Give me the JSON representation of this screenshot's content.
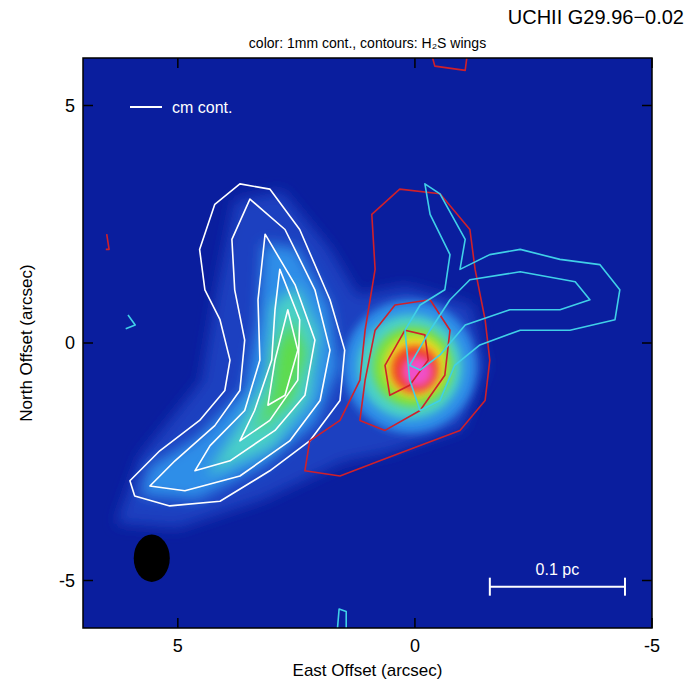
{
  "chart_data": {
    "type": "contour",
    "title": "UCHII G29.96−0.02",
    "subtitle": "color: 1mm cont., contours: H₂S wings",
    "x_label": "East Offset (arcsec)",
    "y_label": "North Offset (arcsec)",
    "xlim": [
      7,
      -5
    ],
    "ylim": [
      -6,
      6
    ],
    "xticks": [
      5,
      0,
      -5
    ],
    "yticks": [
      -5,
      0,
      5
    ],
    "legend": "upper left",
    "background": "#0a1e9e",
    "color_regions": [
      {
        "color": "#1a3fc0",
        "points": [
          [
            6.3,
            -3.8
          ],
          [
            5.0,
            -3.9
          ],
          [
            3.2,
            -3.3
          ],
          [
            1.5,
            -2.5
          ],
          [
            0.5,
            -2.3
          ],
          [
            -1.0,
            -1.8
          ],
          [
            -1.5,
            -0.5
          ],
          [
            -1.2,
            0.8
          ],
          [
            0.2,
            1.2
          ],
          [
            1.2,
            1.0
          ],
          [
            1.8,
            2.0
          ],
          [
            2.8,
            3.2
          ],
          [
            3.8,
            3.0
          ],
          [
            4.2,
            1.0
          ],
          [
            4.5,
            -0.8
          ],
          [
            5.8,
            -2.4
          ]
        ]
      },
      {
        "color": "#2f8ee8",
        "points": [
          [
            5.8,
            -3.2
          ],
          [
            4.6,
            -3.3
          ],
          [
            3.2,
            -2.6
          ],
          [
            2.1,
            -1.7
          ],
          [
            1.6,
            -0.5
          ],
          [
            1.8,
            0.8
          ],
          [
            2.5,
            2.0
          ],
          [
            3.2,
            2.1
          ],
          [
            3.3,
            0.5
          ],
          [
            3.6,
            -1.0
          ],
          [
            4.6,
            -2.0
          ],
          [
            5.6,
            -2.6
          ]
        ]
      },
      {
        "color": "#4ad0c8",
        "points": [
          [
            4.4,
            -2.8
          ],
          [
            3.0,
            -2.2
          ],
          [
            2.2,
            -1.2
          ],
          [
            2.0,
            0.2
          ],
          [
            2.5,
            1.2
          ],
          [
            3.0,
            0.8
          ],
          [
            3.1,
            -0.6
          ],
          [
            3.7,
            -1.7
          ]
        ]
      },
      {
        "color": "#5edc4a",
        "points": [
          [
            3.4,
            -1.9
          ],
          [
            2.6,
            -1.2
          ],
          [
            2.3,
            -0.2
          ],
          [
            2.6,
            0.5
          ],
          [
            2.9,
            -0.1
          ],
          [
            3.0,
            -1.0
          ]
        ]
      }
    ],
    "core": [
      {
        "color": "#2f8ee8",
        "x": 0.1,
        "y": -0.5,
        "r": 1.4
      },
      {
        "color": "#4ad0c8",
        "x": 0.1,
        "y": -0.5,
        "r": 1.1
      },
      {
        "color": "#7be040",
        "x": 0.05,
        "y": -0.5,
        "r": 0.85
      },
      {
        "color": "#f0e020",
        "x": 0.0,
        "y": -0.5,
        "r": 0.65
      },
      {
        "color": "#f04020",
        "x": 0.0,
        "y": -0.55,
        "r": 0.5
      },
      {
        "color": "#f050c8",
        "x": -0.05,
        "y": -0.6,
        "r": 0.33
      }
    ],
    "series": [
      {
        "name": "cm cont.",
        "color": "#ffffff",
        "contours": [
          [
            [
              3.69,
              3.35
            ],
            [
              3.06,
              3.24
            ],
            [
              2.43,
              2.39
            ],
            [
              1.79,
              0.91
            ],
            [
              1.48,
              -0.15
            ],
            [
              1.58,
              -1.21
            ],
            [
              2.22,
              -2.06
            ],
            [
              3.06,
              -2.69
            ],
            [
              4.11,
              -3.33
            ],
            [
              5.17,
              -3.43
            ],
            [
              5.91,
              -3.22
            ],
            [
              6.01,
              -2.9
            ],
            [
              5.38,
              -2.27
            ],
            [
              4.54,
              -1.63
            ],
            [
              4.01,
              -1.0
            ],
            [
              3.9,
              -0.36
            ],
            [
              4.11,
              0.49
            ],
            [
              4.43,
              1.12
            ],
            [
              4.54,
              1.97
            ],
            [
              4.22,
              2.92
            ]
          ],
          [
            [
              3.48,
              3.03
            ],
            [
              2.74,
              2.39
            ],
            [
              2.11,
              1.12
            ],
            [
              1.79,
              -0.15
            ],
            [
              2.0,
              -1.21
            ],
            [
              2.64,
              -2.06
            ],
            [
              3.69,
              -2.8
            ],
            [
              4.85,
              -3.11
            ],
            [
              5.59,
              -3.01
            ],
            [
              5.06,
              -2.48
            ],
            [
              4.22,
              -1.74
            ],
            [
              3.69,
              -1.0
            ],
            [
              3.59,
              0.06
            ],
            [
              3.8,
              1.12
            ],
            [
              3.86,
              2.18
            ]
          ],
          [
            [
              3.16,
              2.29
            ],
            [
              2.53,
              1.23
            ],
            [
              2.11,
              0.06
            ],
            [
              2.32,
              -1.1
            ],
            [
              2.95,
              -1.84
            ],
            [
              3.9,
              -2.48
            ],
            [
              4.64,
              -2.69
            ],
            [
              4.32,
              -2.16
            ],
            [
              3.59,
              -1.42
            ],
            [
              3.27,
              -0.36
            ],
            [
              3.31,
              0.91
            ]
          ],
          [
            [
              2.85,
              1.55
            ],
            [
              2.43,
              0.49
            ],
            [
              2.47,
              -0.78
            ],
            [
              3.06,
              -1.63
            ],
            [
              3.69,
              -2.06
            ],
            [
              3.38,
              -1.42
            ],
            [
              3.02,
              -0.36
            ],
            [
              2.95,
              0.7
            ]
          ],
          [
            [
              2.68,
              0.7
            ],
            [
              2.47,
              -0.15
            ],
            [
              2.74,
              -1.1
            ],
            [
              3.1,
              -1.31
            ],
            [
              2.95,
              -0.36
            ]
          ]
        ]
      },
      {
        "color": "#d0202a",
        "contours": [
          [
            [
              0.32,
              3.24
            ],
            [
              -0.53,
              3.14
            ],
            [
              -1.16,
              2.39
            ],
            [
              -1.27,
              1.55
            ],
            [
              -1.48,
              0.49
            ],
            [
              -1.58,
              -0.36
            ],
            [
              -1.48,
              -1.21
            ],
            [
              -0.95,
              -1.84
            ],
            [
              -0.11,
              -2.16
            ],
            [
              0.74,
              -2.48
            ],
            [
              1.58,
              -2.8
            ],
            [
              2.32,
              -2.69
            ],
            [
              2.22,
              -2.06
            ],
            [
              1.58,
              -1.63
            ],
            [
              1.16,
              -0.78
            ],
            [
              1.05,
              0.27
            ],
            [
              0.84,
              1.55
            ],
            [
              0.91,
              2.71
            ]
          ],
          [
            [
              0.42,
              0.8
            ],
            [
              -0.32,
              0.91
            ],
            [
              -0.74,
              0.27
            ],
            [
              -0.63,
              -0.68
            ],
            [
              -0.11,
              -1.42
            ],
            [
              0.63,
              -1.84
            ],
            [
              1.16,
              -1.63
            ],
            [
              1.05,
              -0.78
            ],
            [
              0.84,
              0.27
            ]
          ],
          [
            [
              0.21,
              0.27
            ],
            [
              -0.21,
              0.17
            ],
            [
              -0.28,
              -0.36
            ],
            [
              0.11,
              -0.89
            ],
            [
              0.53,
              -1.1
            ],
            [
              0.63,
              -0.47
            ]
          ],
          [
            [
              -0.32,
              6.2
            ],
            [
              -0.42,
              5.83
            ],
            [
              -1.06,
              5.74
            ],
            [
              -1.12,
              6.2
            ]
          ],
          [
            [
              6.5,
              2.29
            ],
            [
              6.45,
              1.97
            ],
            [
              6.52,
              1.97
            ]
          ]
        ]
      },
      {
        "color": "#40d0e8",
        "contours": [
          [
            [
              -0.21,
              3.35
            ],
            [
              -0.53,
              3.14
            ],
            [
              -1.06,
              2.18
            ],
            [
              -0.95,
              1.55
            ],
            [
              -1.58,
              1.86
            ],
            [
              -2.22,
              1.97
            ],
            [
              -3.06,
              1.76
            ],
            [
              -3.9,
              1.65
            ],
            [
              -4.32,
              1.12
            ],
            [
              -4.22,
              0.49
            ],
            [
              -3.27,
              0.27
            ],
            [
              -2.22,
              0.27
            ],
            [
              -1.37,
              -0.04
            ],
            [
              -0.84,
              -0.47
            ],
            [
              -0.53,
              -1.21
            ],
            [
              -0.11,
              -1.42
            ],
            [
              0.11,
              -0.78
            ],
            [
              0.21,
              0.27
            ],
            [
              -0.11,
              0.8
            ],
            [
              -0.63,
              1.12
            ],
            [
              -0.74,
              1.86
            ],
            [
              -0.32,
              2.71
            ]
          ],
          [
            [
              -1.16,
              1.33
            ],
            [
              -2.22,
              1.5
            ],
            [
              -3.38,
              1.29
            ],
            [
              -3.69,
              0.91
            ],
            [
              -3.06,
              0.7
            ],
            [
              -2.0,
              0.7
            ],
            [
              -1.06,
              0.38
            ],
            [
              -0.53,
              -0.25
            ],
            [
              -0.11,
              -0.57
            ],
            [
              0.11,
              -0.47
            ],
            [
              -0.32,
              0.27
            ],
            [
              -0.74,
              0.91
            ]
          ],
          [
            [
              6.05,
              0.59
            ],
            [
              5.9,
              0.38
            ],
            [
              6.1,
              0.3
            ]
          ],
          [
            [
              1.65,
              -6.2
            ],
            [
              1.6,
              -5.6
            ],
            [
              1.45,
              -5.65
            ],
            [
              1.45,
              -6.2
            ]
          ]
        ]
      }
    ],
    "beam": {
      "x": 5.55,
      "y": -4.53,
      "width": 0.76,
      "height": 1.0,
      "color": "#000000"
    },
    "scale_bar": {
      "label": "0.1 pc",
      "x_start": -1.58,
      "x_end": -4.43,
      "y": -5.13,
      "color": "#ffffff"
    }
  }
}
